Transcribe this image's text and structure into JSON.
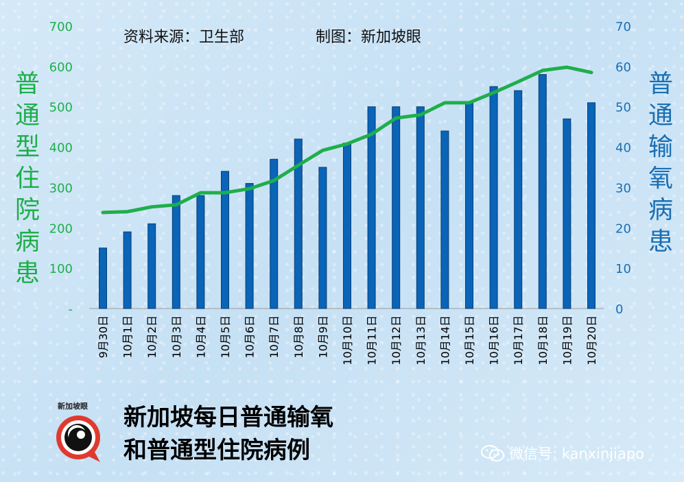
{
  "source": "资料来源：卫生部",
  "maker": "制图：新加坡眼",
  "left_axis_title": "普通型住院病患",
  "right_axis_title": "普通输氧病患",
  "main_title_line1": "新加坡每日普通输氧",
  "main_title_line2": "和普通型住院病例",
  "logo_text": "新加坡眼",
  "wechat": "微信号: kanxinjiapo",
  "colors": {
    "bar": "#0a64b8",
    "line": "#1fae4b",
    "left_axis": "#1fae4b",
    "right_axis": "#1a6fb3"
  },
  "chart_data": {
    "type": "bar+line",
    "categories": [
      "9月30日",
      "10月1日",
      "10月2日",
      "10月3日",
      "10月4日",
      "10月5日",
      "10月6日",
      "10月7日",
      "10月8日",
      "10月9日",
      "10月10日",
      "10月11日",
      "10月12日",
      "10月13日",
      "10月14日",
      "10月15日",
      "10月16日",
      "10月17日",
      "10月18日",
      "10月19日",
      "10月20日"
    ],
    "series": [
      {
        "name": "普通输氧病患",
        "type": "bar",
        "axis": "right",
        "values": [
          15,
          19,
          21,
          28,
          28,
          34,
          31,
          37,
          42,
          35,
          41,
          50,
          50,
          50,
          44,
          51,
          55,
          54,
          58,
          47,
          51
        ]
      },
      {
        "name": "普通型住院病患",
        "type": "line",
        "axis": "left",
        "values": [
          238,
          240,
          252,
          257,
          287,
          287,
          297,
          317,
          355,
          392,
          408,
          432,
          472,
          480,
          510,
          510,
          535,
          562,
          590,
          598,
          585
        ]
      }
    ],
    "left_axis": {
      "ylim": [
        0,
        700
      ],
      "ticks": [
        "-",
        "100",
        "200",
        "300",
        "400",
        "500",
        "600",
        "700"
      ]
    },
    "right_axis": {
      "ylim": [
        0,
        70
      ],
      "ticks": [
        "0",
        "10",
        "20",
        "30",
        "40",
        "50",
        "60",
        "70"
      ]
    }
  }
}
